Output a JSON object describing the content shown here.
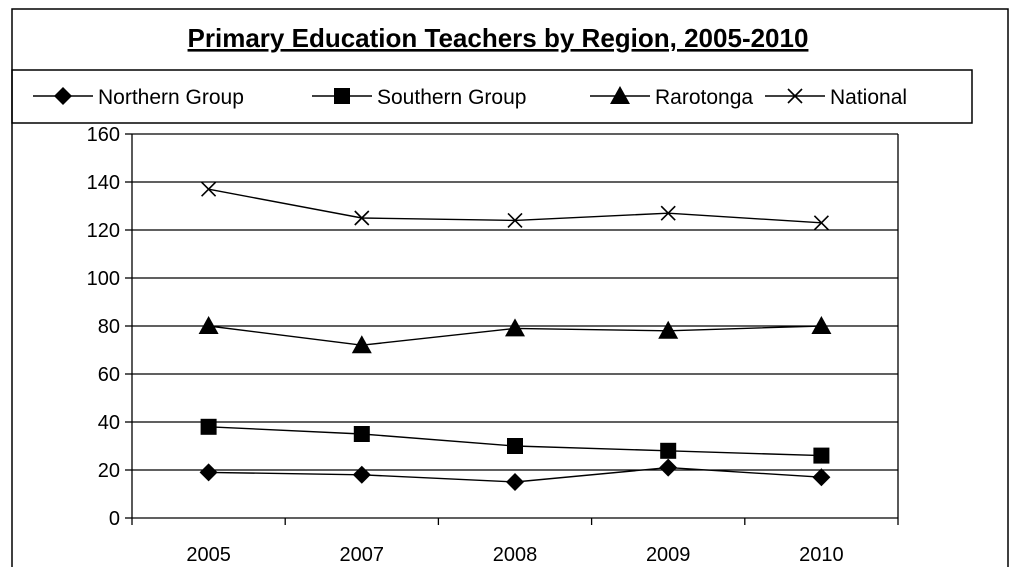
{
  "chart_data": {
    "type": "line",
    "title": "Primary Education Teachers by Region, 2005-2010",
    "categories": [
      "2005",
      "2007",
      "2008",
      "2009",
      "2010"
    ],
    "ylim": [
      0,
      160
    ],
    "yticks": [
      0,
      20,
      40,
      60,
      80,
      100,
      120,
      140,
      160
    ],
    "grid": true,
    "legend_position": "top",
    "series": [
      {
        "name": "Northern Group",
        "marker": "diamond",
        "values": [
          19,
          18,
          15,
          21,
          17
        ]
      },
      {
        "name": "Southern Group",
        "marker": "square",
        "values": [
          38,
          35,
          30,
          28,
          26
        ]
      },
      {
        "name": "Rarotonga",
        "marker": "triangle",
        "values": [
          80,
          72,
          79,
          78,
          80
        ]
      },
      {
        "name": "National",
        "marker": "x",
        "values": [
          137,
          125,
          124,
          127,
          123
        ]
      }
    ],
    "colors": {
      "line": "#000000",
      "grid": "#000000",
      "background": "#ffffff"
    }
  }
}
